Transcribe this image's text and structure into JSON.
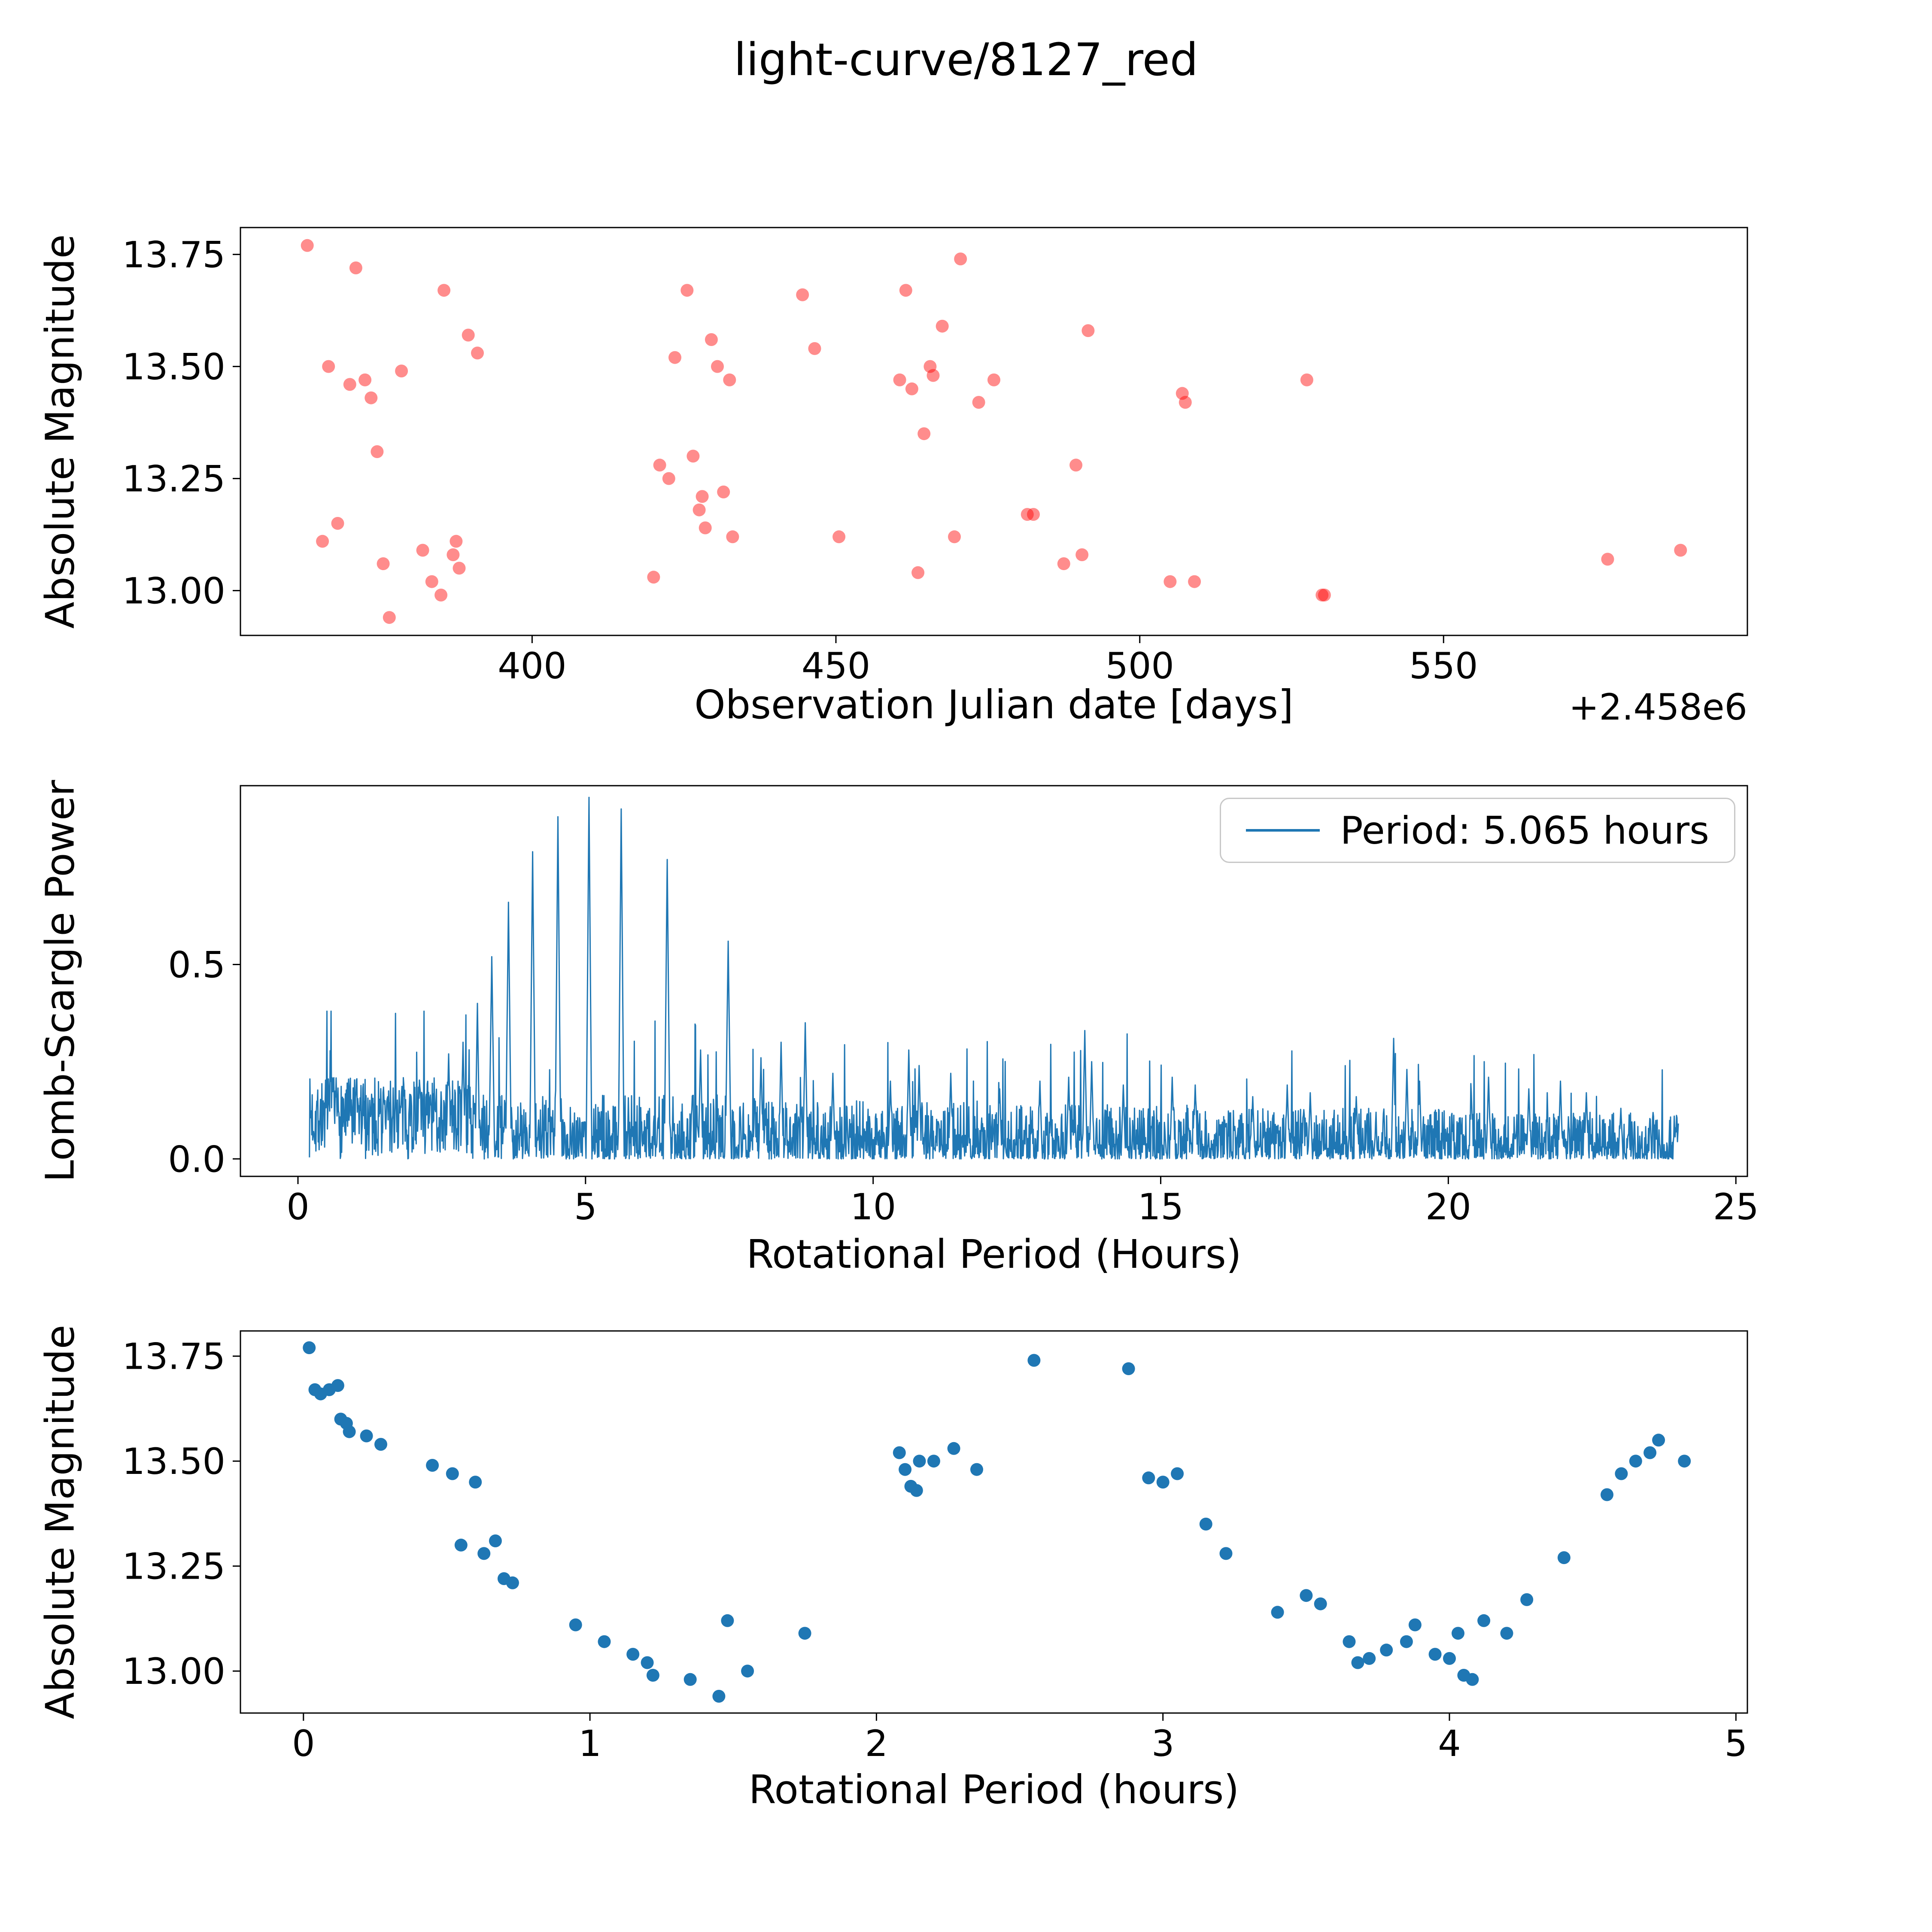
{
  "title": "light-curve/8127_red",
  "colors": {
    "red_marker": "#ff0000",
    "blue": "#1f77b4",
    "axis": "#000000",
    "legend_border": "#c8c8c8"
  },
  "chart_data": [
    {
      "type": "scatter",
      "xlabel": "Observation Julian date [days]",
      "offset_text": "+2.458e6",
      "ylabel": "Absolute Magnitude",
      "xlim": [
        352,
        600
      ],
      "ylim": [
        12.9,
        13.81
      ],
      "xticks": [
        [
          400,
          "400"
        ],
        [
          450,
          "450"
        ],
        [
          500,
          "500"
        ],
        [
          550,
          "550"
        ]
      ],
      "yticks": [
        [
          13.0,
          "13.00"
        ],
        [
          13.25,
          "13.25"
        ],
        [
          13.5,
          "13.50"
        ],
        [
          13.75,
          "13.75"
        ]
      ],
      "marker_color": "#ff0000",
      "marker_alpha": 0.45,
      "points": [
        [
          363,
          13.77
        ],
        [
          365.5,
          13.11
        ],
        [
          366.5,
          13.5
        ],
        [
          368,
          13.15
        ],
        [
          370,
          13.46
        ],
        [
          371,
          13.72
        ],
        [
          372.5,
          13.47
        ],
        [
          373.5,
          13.43
        ],
        [
          374.5,
          13.31
        ],
        [
          375.5,
          13.06
        ],
        [
          376.5,
          12.94
        ],
        [
          378.5,
          13.49
        ],
        [
          382,
          13.09
        ],
        [
          383.5,
          13.02
        ],
        [
          385,
          12.99
        ],
        [
          385.5,
          13.67
        ],
        [
          387,
          13.08
        ],
        [
          387.5,
          13.11
        ],
        [
          388,
          13.05
        ],
        [
          389.5,
          13.57
        ],
        [
          391,
          13.53
        ],
        [
          420,
          13.03
        ],
        [
          421,
          13.28
        ],
        [
          422.5,
          13.25
        ],
        [
          423.5,
          13.52
        ],
        [
          425.5,
          13.67
        ],
        [
          426.5,
          13.3
        ],
        [
          427.5,
          13.18
        ],
        [
          428,
          13.21
        ],
        [
          428.5,
          13.14
        ],
        [
          429.5,
          13.56
        ],
        [
          430.5,
          13.5
        ],
        [
          431.5,
          13.22
        ],
        [
          432.5,
          13.47
        ],
        [
          433,
          13.12
        ],
        [
          444.5,
          13.66
        ],
        [
          446.5,
          13.54
        ],
        [
          450.5,
          13.12
        ],
        [
          460.5,
          13.47
        ],
        [
          461.5,
          13.67
        ],
        [
          462.5,
          13.45
        ],
        [
          463.5,
          13.04
        ],
        [
          464.5,
          13.35
        ],
        [
          465.5,
          13.5
        ],
        [
          466,
          13.48
        ],
        [
          467.5,
          13.59
        ],
        [
          469.5,
          13.12
        ],
        [
          470.5,
          13.74
        ],
        [
          473.5,
          13.42
        ],
        [
          476,
          13.47
        ],
        [
          481.5,
          13.17
        ],
        [
          482.5,
          13.17
        ],
        [
          487.5,
          13.06
        ],
        [
          489.5,
          13.28
        ],
        [
          490.5,
          13.08
        ],
        [
          491.5,
          13.58
        ],
        [
          505,
          13.02
        ],
        [
          507,
          13.44
        ],
        [
          507.5,
          13.42
        ],
        [
          509,
          13.02
        ],
        [
          527.5,
          13.47
        ],
        [
          530,
          12.99
        ],
        [
          530.4,
          12.99
        ],
        [
          577,
          13.07
        ],
        [
          589,
          13.09
        ]
      ]
    },
    {
      "type": "line",
      "xlabel": "Rotational Period (Hours)",
      "ylabel": "Lomb-Scargle Power",
      "xlim": [
        -1.0,
        25.2
      ],
      "ylim": [
        -0.045,
        0.96
      ],
      "xticks": [
        [
          0,
          "0"
        ],
        [
          5,
          "5"
        ],
        [
          10,
          "10"
        ],
        [
          15,
          "15"
        ],
        [
          20,
          "20"
        ],
        [
          25,
          "25"
        ]
      ],
      "yticks": [
        [
          0.0,
          "0.0"
        ],
        [
          0.5,
          "0.5"
        ]
      ],
      "legend": "Period: 5.065 hours",
      "best_period_hours": 5.065,
      "line_color": "#1f77b4",
      "x_range": [
        0.2,
        24
      ],
      "noise": {
        "seed": 7,
        "step": 0.008
      },
      "peaks": [
        [
          2.62,
          0.27
        ],
        [
          2.87,
          0.3
        ],
        [
          3.12,
          0.4
        ],
        [
          3.37,
          0.52
        ],
        [
          3.66,
          0.66
        ],
        [
          4.08,
          0.79
        ],
        [
          4.52,
          0.88
        ],
        [
          5.06,
          0.93
        ],
        [
          5.62,
          0.9
        ],
        [
          6.42,
          0.77
        ],
        [
          7.0,
          0.28
        ],
        [
          7.48,
          0.56
        ],
        [
          8.05,
          0.26
        ],
        [
          8.4,
          0.3
        ],
        [
          8.82,
          0.35
        ],
        [
          9.3,
          0.22
        ],
        [
          10.3,
          0.2
        ],
        [
          10.62,
          0.28
        ],
        [
          10.8,
          0.24
        ],
        [
          11.35,
          0.22
        ],
        [
          12.2,
          0.18
        ],
        [
          12.9,
          0.2
        ],
        [
          13.4,
          0.21
        ],
        [
          13.68,
          0.33
        ],
        [
          13.8,
          0.25
        ],
        [
          14.35,
          0.19
        ],
        [
          15.2,
          0.21
        ],
        [
          15.6,
          0.19
        ],
        [
          16.6,
          0.16
        ],
        [
          17.2,
          0.19
        ],
        [
          17.6,
          0.17
        ],
        [
          18.4,
          0.16
        ],
        [
          19.05,
          0.31
        ],
        [
          19.28,
          0.23
        ],
        [
          19.5,
          0.2
        ],
        [
          20.4,
          0.17
        ],
        [
          20.7,
          0.21
        ],
        [
          21.4,
          0.18
        ],
        [
          21.95,
          0.2
        ],
        [
          22.4,
          0.17
        ],
        [
          23.0,
          0.13
        ]
      ]
    },
    {
      "type": "scatter",
      "xlabel": "Rotational Period (hours)",
      "ylabel": "Absolute Magnitude",
      "xlim": [
        -0.22,
        5.04
      ],
      "ylim": [
        12.9,
        13.81
      ],
      "xticks": [
        [
          0,
          "0"
        ],
        [
          1,
          "1"
        ],
        [
          2,
          "2"
        ],
        [
          3,
          "3"
        ],
        [
          4,
          "4"
        ],
        [
          5,
          "5"
        ]
      ],
      "yticks": [
        [
          13.0,
          "13.00"
        ],
        [
          13.25,
          "13.25"
        ],
        [
          13.5,
          "13.50"
        ],
        [
          13.75,
          "13.75"
        ]
      ],
      "marker_color": "#1f77b4",
      "marker_alpha": 1.0,
      "points": [
        [
          0.02,
          13.77
        ],
        [
          0.04,
          13.67
        ],
        [
          0.06,
          13.66
        ],
        [
          0.09,
          13.67
        ],
        [
          0.12,
          13.68
        ],
        [
          0.13,
          13.6
        ],
        [
          0.15,
          13.59
        ],
        [
          0.16,
          13.57
        ],
        [
          0.22,
          13.56
        ],
        [
          0.27,
          13.54
        ],
        [
          0.45,
          13.49
        ],
        [
          0.52,
          13.47
        ],
        [
          0.55,
          13.3
        ],
        [
          0.6,
          13.45
        ],
        [
          0.63,
          13.28
        ],
        [
          0.67,
          13.31
        ],
        [
          0.7,
          13.22
        ],
        [
          0.73,
          13.21
        ],
        [
          0.95,
          13.11
        ],
        [
          1.05,
          13.07
        ],
        [
          1.15,
          13.04
        ],
        [
          1.2,
          13.02
        ],
        [
          1.22,
          12.99
        ],
        [
          1.35,
          12.98
        ],
        [
          1.45,
          12.94
        ],
        [
          1.48,
          13.12
        ],
        [
          1.55,
          13.0
        ],
        [
          1.75,
          13.09
        ],
        [
          2.08,
          13.52
        ],
        [
          2.1,
          13.48
        ],
        [
          2.12,
          13.44
        ],
        [
          2.14,
          13.43
        ],
        [
          2.15,
          13.5
        ],
        [
          2.2,
          13.5
        ],
        [
          2.27,
          13.53
        ],
        [
          2.35,
          13.48
        ],
        [
          2.55,
          13.74
        ],
        [
          2.88,
          13.72
        ],
        [
          2.95,
          13.46
        ],
        [
          3.0,
          13.45
        ],
        [
          3.05,
          13.47
        ],
        [
          3.15,
          13.35
        ],
        [
          3.22,
          13.28
        ],
        [
          3.4,
          13.14
        ],
        [
          3.5,
          13.18
        ],
        [
          3.55,
          13.16
        ],
        [
          3.65,
          13.07
        ],
        [
          3.68,
          13.02
        ],
        [
          3.72,
          13.03
        ],
        [
          3.78,
          13.05
        ],
        [
          3.85,
          13.07
        ],
        [
          3.88,
          13.11
        ],
        [
          3.95,
          13.04
        ],
        [
          4.0,
          13.03
        ],
        [
          4.03,
          13.09
        ],
        [
          4.05,
          12.99
        ],
        [
          4.08,
          12.98
        ],
        [
          4.12,
          13.12
        ],
        [
          4.2,
          13.09
        ],
        [
          4.27,
          13.17
        ],
        [
          4.4,
          13.27
        ],
        [
          4.55,
          13.42
        ],
        [
          4.6,
          13.47
        ],
        [
          4.65,
          13.5
        ],
        [
          4.7,
          13.52
        ],
        [
          4.73,
          13.55
        ],
        [
          4.82,
          13.5
        ]
      ]
    }
  ]
}
